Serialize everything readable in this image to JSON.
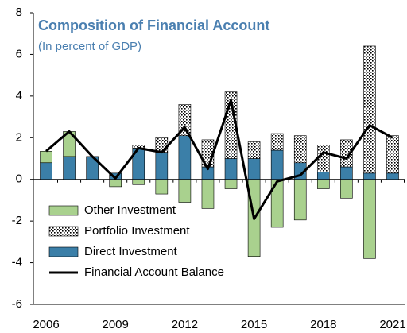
{
  "chart_data": {
    "type": "bar",
    "title": "Composition of Financial Account",
    "subtitle": "(In percent of GDP)",
    "title_color": "#4a7fb0",
    "categories": [
      "2006",
      null,
      null,
      "2009",
      null,
      null,
      "2012",
      null,
      null,
      "2015",
      null,
      null,
      "2018",
      null,
      null,
      "2021"
    ],
    "series": [
      {
        "name": "Other Investment",
        "type": "bar",
        "color": "#a9d18e",
        "values": [
          0.55,
          1.2,
          0,
          -0.35,
          -0.25,
          -0.7,
          -1.1,
          -1.4,
          -0.45,
          -3.7,
          -2.3,
          -1.95,
          -0.45,
          -0.9,
          -3.8,
          0
        ]
      },
      {
        "name": "Portfolio Investment",
        "type": "bar",
        "color": "#000000",
        "pattern": "dotted",
        "values": [
          0,
          0,
          0,
          0,
          0.15,
          0.7,
          1.5,
          1.3,
          3.2,
          0.8,
          0.8,
          1.3,
          1.3,
          1.3,
          6.1,
          1.8
        ]
      },
      {
        "name": "Direct Investment",
        "type": "bar",
        "color": "#3b7fa8",
        "values": [
          0.8,
          1.1,
          1.1,
          0.3,
          1.5,
          1.3,
          2.1,
          0.6,
          1.0,
          1.0,
          1.4,
          0.8,
          0.35,
          0.6,
          0.3,
          0.3
        ]
      },
      {
        "name": "Financial Account Balance",
        "type": "line",
        "color": "#000000",
        "values": [
          1.35,
          2.3,
          1.1,
          0.05,
          1.5,
          1.3,
          2.5,
          0.5,
          3.8,
          -1.9,
          -0.1,
          0.2,
          1.3,
          1.0,
          2.6,
          2.0
        ]
      }
    ],
    "stack_order": [
      2,
      1,
      0
    ],
    "ylim": [
      -6,
      8
    ],
    "yticks": [
      -6,
      -4,
      -2,
      0,
      2,
      4,
      6,
      8
    ]
  }
}
